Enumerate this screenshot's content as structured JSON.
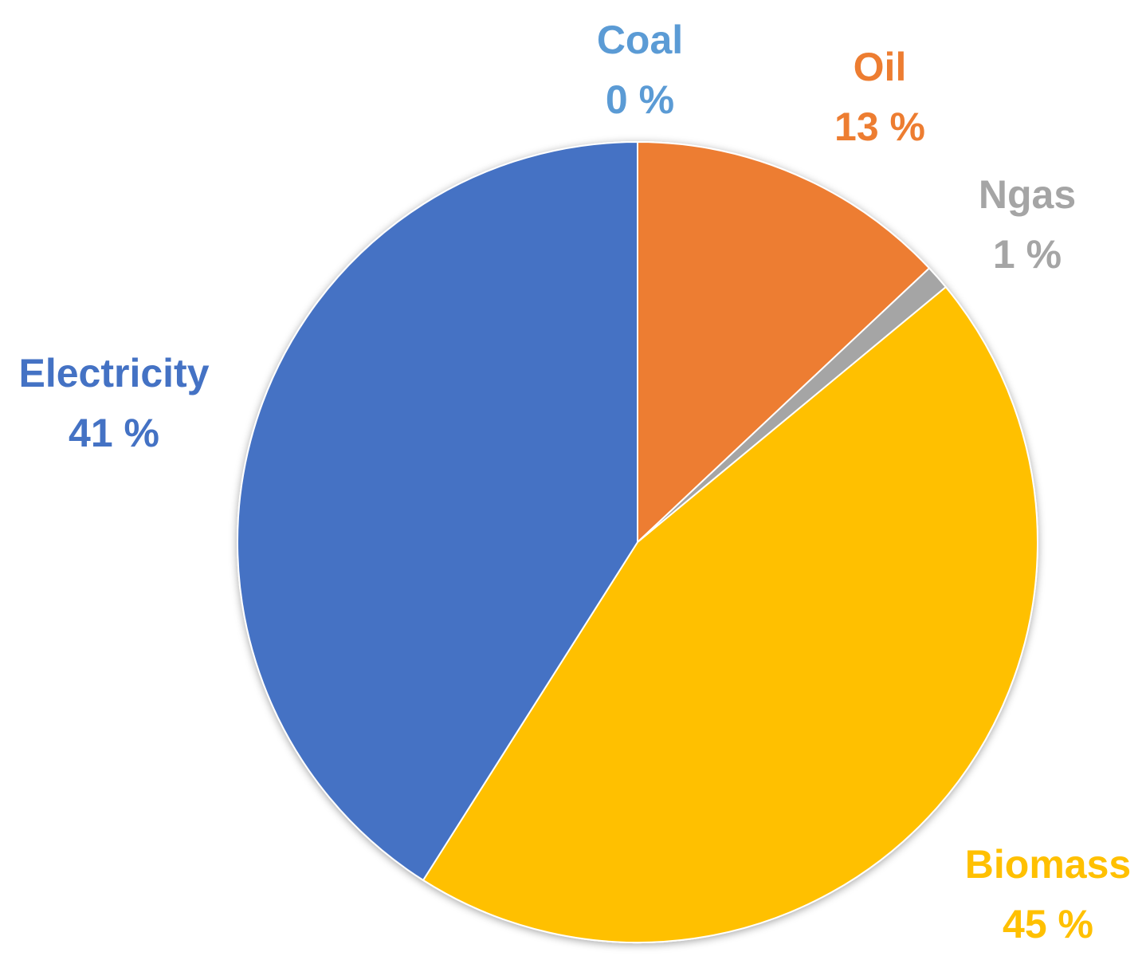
{
  "chart_data": {
    "type": "pie",
    "title": "",
    "slices": [
      {
        "category": "Coal",
        "value": 0,
        "value_label": "0 %",
        "color": "#5B9BD5"
      },
      {
        "category": "Oil",
        "value": 13,
        "value_label": "13 %",
        "color": "#ED7D31"
      },
      {
        "category": "Ngas",
        "value": 1,
        "value_label": "1 %",
        "color": "#A5A5A5"
      },
      {
        "category": "Biomass",
        "value": 45,
        "value_label": "45 %",
        "color": "#FFC000"
      },
      {
        "category": "Electricity",
        "value": 41,
        "value_label": "41 %",
        "color": "#4472C4"
      }
    ],
    "start_angle": "12 o'clock",
    "direction": "clockwise",
    "legend": "none",
    "data_labels": "outside, category name above percentage"
  }
}
